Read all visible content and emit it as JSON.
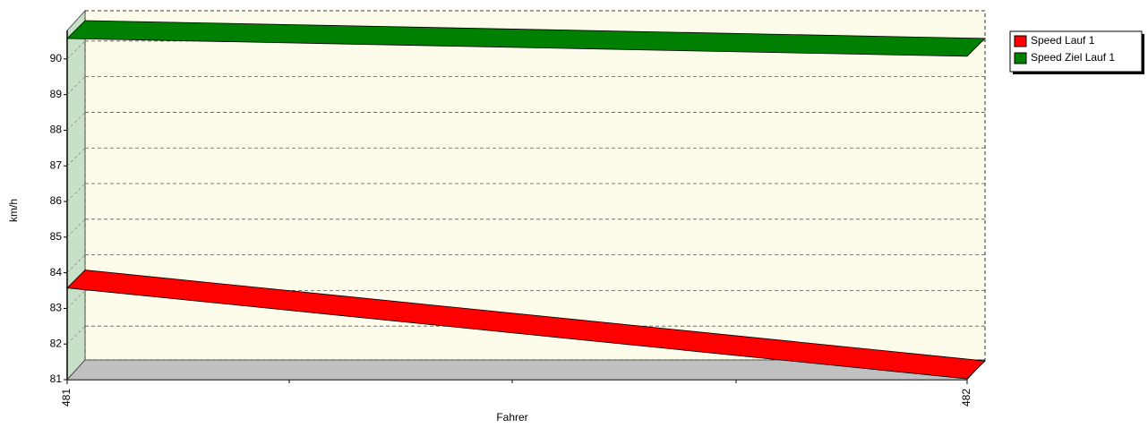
{
  "chart_data": {
    "type": "line",
    "x_label": "Fahrer",
    "y_label": "km/h",
    "categories": [
      "481",
      "482"
    ],
    "series": [
      {
        "name": "Speed Lauf 1",
        "color": "#ff0000",
        "values": [
          83.75,
          81.2
        ]
      },
      {
        "name": "Speed Ziel Lauf 1",
        "color": "#008000",
        "values": [
          90.75,
          90.25
        ]
      }
    ],
    "ylim": [
      81,
      90.8
    ],
    "yticks": [
      81,
      82,
      83,
      84,
      85,
      86,
      87,
      88,
      89,
      90
    ],
    "grid": true,
    "legend": "top-right"
  }
}
